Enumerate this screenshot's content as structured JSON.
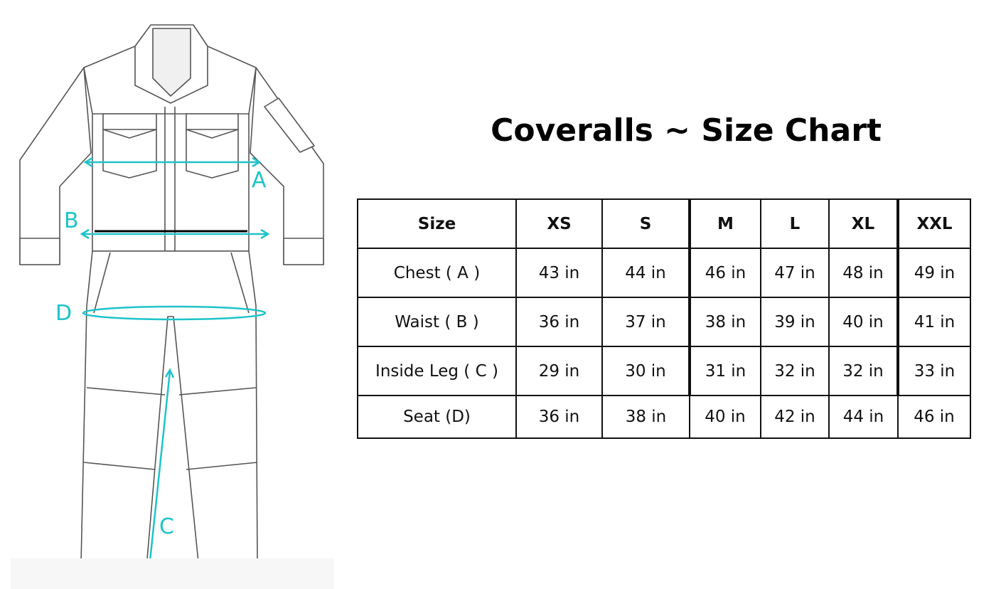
{
  "title": "Coveralls ~ Size Chart",
  "colors": {
    "measurement": "#1ec3c9",
    "outline": "#555555",
    "text": "#111111"
  },
  "illustration": {
    "labels": {
      "chest": "A",
      "waist": "B",
      "inside_leg": "C",
      "seat": "D"
    }
  },
  "table": {
    "headers": [
      "Size",
      "XS",
      "S",
      "M",
      "L",
      "XL",
      "XXL"
    ],
    "rows": [
      {
        "label": "Chest ( A )",
        "values": [
          "43 in",
          "44 in",
          "46 in",
          "47 in",
          "48 in",
          "49 in"
        ]
      },
      {
        "label": "Waist ( B )",
        "values": [
          "36 in",
          "37 in",
          "38 in",
          "39 in",
          "40 in",
          "41 in"
        ]
      },
      {
        "label": "Inside Leg ( C )",
        "values": [
          "29 in",
          "30 in",
          "31 in",
          "32 in",
          "32 in",
          "33 in"
        ]
      },
      {
        "label": "Seat (D)",
        "values": [
          "36 in",
          "38 in",
          "40 in",
          "42 in",
          "44 in",
          "46 in"
        ]
      }
    ]
  }
}
